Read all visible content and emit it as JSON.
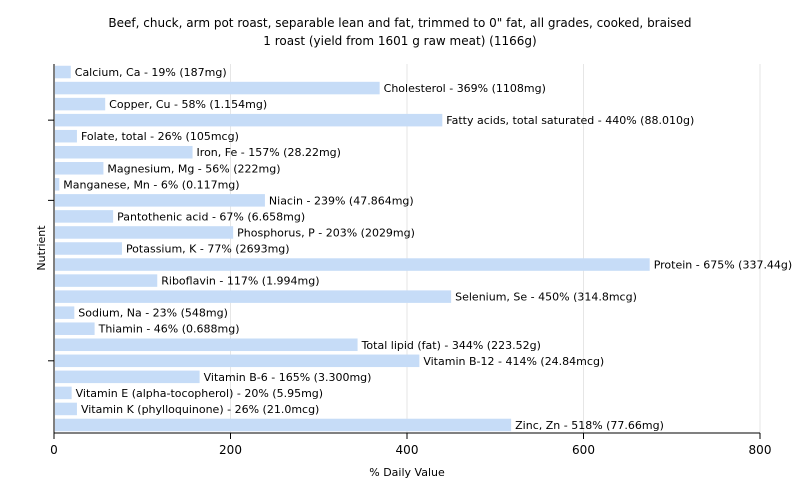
{
  "chart_data": {
    "type": "bar",
    "orientation": "horizontal",
    "title": "Beef, chuck, arm pot roast, separable lean and fat, trimmed to 0\" fat, all grades, cooked, braised",
    "subtitle": "1 roast (yield from 1601 g raw meat) (1166g)",
    "xlabel": "% Daily Value",
    "ylabel": "Nutrient",
    "xlim": [
      0,
      800
    ],
    "xticks": [
      "0",
      "200",
      "400",
      "600",
      "800"
    ],
    "grid": "vertical",
    "bar_color": "#c6dcf7",
    "categories": [
      "Calcium, Ca",
      "Cholesterol",
      "Copper, Cu",
      "Fatty acids, total saturated",
      "Folate, total",
      "Iron, Fe",
      "Magnesium, Mg",
      "Manganese, Mn",
      "Niacin",
      "Pantothenic acid",
      "Phosphorus, P",
      "Potassium, K",
      "Protein",
      "Riboflavin",
      "Selenium, Se",
      "Sodium, Na",
      "Thiamin",
      "Total lipid (fat)",
      "Vitamin B-12",
      "Vitamin B-6",
      "Vitamin E (alpha-tocopherol)",
      "Vitamin K (phylloquinone)",
      "Zinc, Zn"
    ],
    "values": [
      19,
      369,
      58,
      440,
      26,
      157,
      56,
      6,
      239,
      67,
      203,
      77,
      675,
      117,
      450,
      23,
      46,
      344,
      414,
      165,
      20,
      26,
      518
    ],
    "labels": [
      "Calcium, Ca - 19% (187mg)",
      "Cholesterol - 369% (1108mg)",
      "Copper, Cu - 58% (1.154mg)",
      "Fatty acids, total saturated - 440% (88.010g)",
      "Folate, total - 26% (105mcg)",
      "Iron, Fe - 157% (28.22mg)",
      "Magnesium, Mg - 56% (222mg)",
      "Manganese, Mn - 6% (0.117mg)",
      "Niacin - 239% (47.864mg)",
      "Pantothenic acid - 67% (6.658mg)",
      "Phosphorus, P - 203% (2029mg)",
      "Potassium, K - 77% (2693mg)",
      "Protein - 675% (337.44g)",
      "Riboflavin - 117% (1.994mg)",
      "Selenium, Se - 450% (314.8mcg)",
      "Sodium, Na - 23% (548mg)",
      "Thiamin - 46% (0.688mg)",
      "Total lipid (fat) - 344% (223.52g)",
      "Vitamin B-12 - 414% (24.84mcg)",
      "Vitamin B-6 - 165% (3.300mg)",
      "Vitamin E (alpha-tocopherol) - 20% (5.95mg)",
      "Vitamin K (phylloquinone) - 26% (21.0mcg)",
      "Zinc, Zn - 518% (77.66mg)"
    ]
  }
}
